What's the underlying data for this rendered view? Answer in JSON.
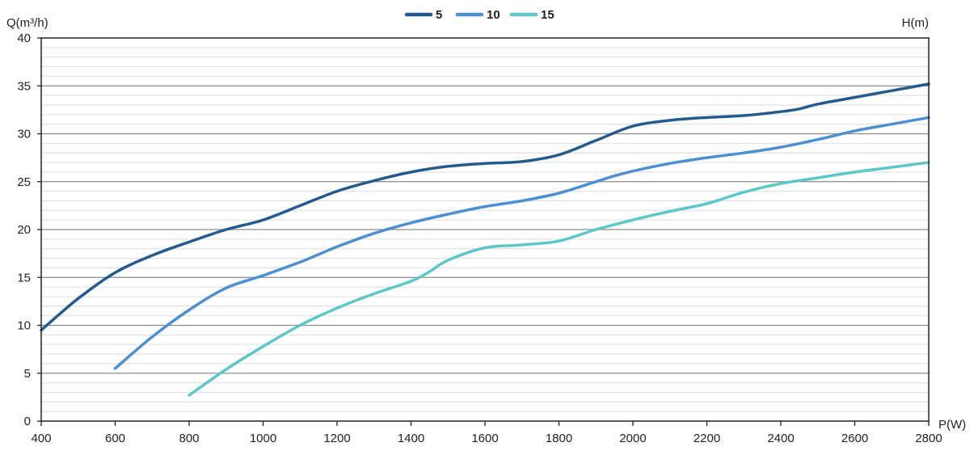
{
  "chart_data": {
    "type": "line",
    "title": "",
    "xlabel": "P(W)",
    "ylabel": "Q(m³/h)",
    "y2label": "H(m)",
    "xlim": [
      400,
      2800
    ],
    "ylim": [
      0,
      40
    ],
    "xticks": [
      400,
      600,
      800,
      1000,
      1200,
      1400,
      1600,
      1800,
      2000,
      2200,
      2400,
      2600,
      2800
    ],
    "yticks": [
      0,
      5,
      10,
      15,
      20,
      25,
      30,
      35,
      40
    ],
    "grid": true,
    "legend_position": "top-center",
    "series": [
      {
        "name": "5",
        "color": "#245b8c",
        "x": [
          400,
          500,
          600,
          700,
          800,
          900,
          1000,
          1100,
          1200,
          1300,
          1400,
          1500,
          1600,
          1700,
          1800,
          1900,
          2000,
          2100,
          2200,
          2300,
          2400,
          2450,
          2500,
          2600,
          2700,
          2800
        ],
        "y": [
          9.5,
          12.8,
          15.5,
          17.3,
          18.7,
          20.0,
          21.0,
          22.5,
          24.0,
          25.1,
          26.0,
          26.6,
          26.9,
          27.1,
          27.8,
          29.3,
          30.8,
          31.4,
          31.7,
          31.9,
          32.3,
          32.6,
          33.1,
          33.8,
          34.5,
          35.2
        ]
      },
      {
        "name": "10",
        "color": "#4d8fcf",
        "x": [
          600,
          700,
          800,
          900,
          1000,
          1100,
          1200,
          1300,
          1400,
          1500,
          1600,
          1700,
          1800,
          1900,
          1950,
          2000,
          2100,
          2200,
          2300,
          2400,
          2500,
          2600,
          2700,
          2800
        ],
        "y": [
          5.5,
          8.8,
          11.6,
          13.9,
          15.2,
          16.6,
          18.2,
          19.6,
          20.7,
          21.6,
          22.4,
          23.0,
          23.8,
          25.0,
          25.6,
          26.1,
          26.9,
          27.5,
          28.0,
          28.6,
          29.4,
          30.3,
          31.0,
          31.7
        ]
      },
      {
        "name": "15",
        "color": "#5cc6c8",
        "x": [
          800,
          900,
          1000,
          1100,
          1200,
          1300,
          1400,
          1450,
          1500,
          1600,
          1700,
          1800,
          1900,
          2000,
          2100,
          2200,
          2300,
          2400,
          2500,
          2600,
          2700,
          2800
        ],
        "y": [
          2.7,
          5.4,
          7.8,
          10.0,
          11.8,
          13.3,
          14.6,
          15.6,
          16.8,
          18.1,
          18.4,
          18.8,
          20.0,
          21.0,
          21.9,
          22.7,
          23.9,
          24.8,
          25.4,
          26.0,
          26.5,
          27.0
        ]
      }
    ]
  }
}
